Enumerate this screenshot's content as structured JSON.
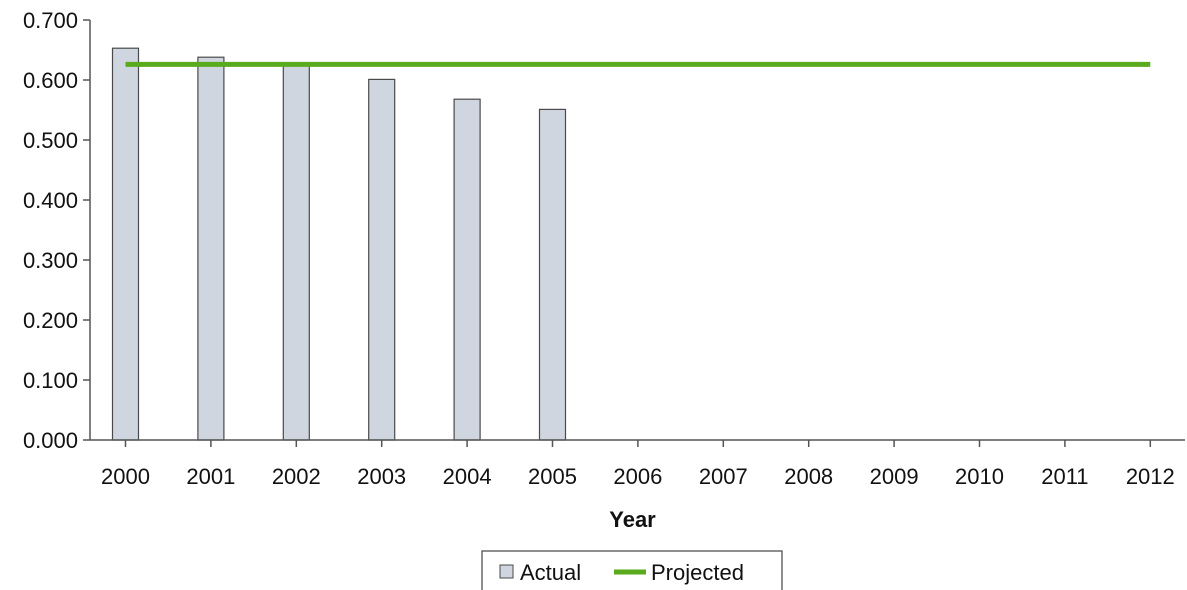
{
  "chart_data": {
    "type": "bar",
    "categories": [
      "2000",
      "2001",
      "2002",
      "2003",
      "2004",
      "2005",
      "2006",
      "2007",
      "2008",
      "2009",
      "2010",
      "2011",
      "2012"
    ],
    "series": [
      {
        "name": "Actual",
        "kind": "bar",
        "color": "#cfd6df",
        "stroke": "#4a4a4a",
        "values": [
          0.653,
          0.638,
          0.625,
          0.601,
          0.568,
          0.551,
          null,
          null,
          null,
          null,
          null,
          null,
          null
        ]
      },
      {
        "name": "Projected",
        "kind": "line",
        "color": "#5aaa1e",
        "values": [
          0.626,
          0.626,
          0.626,
          0.626,
          0.626,
          0.626,
          0.626,
          0.626,
          0.626,
          0.626,
          0.626,
          0.626,
          0.626
        ]
      }
    ],
    "title": "",
    "xlabel": "Year",
    "ylabel": "",
    "ylim": [
      0,
      0.7
    ],
    "yticks": [
      "0.000",
      "0.100",
      "0.200",
      "0.300",
      "0.400",
      "0.500",
      "0.600",
      "0.700"
    ],
    "grid": false,
    "legend_position": "bottom-center"
  }
}
